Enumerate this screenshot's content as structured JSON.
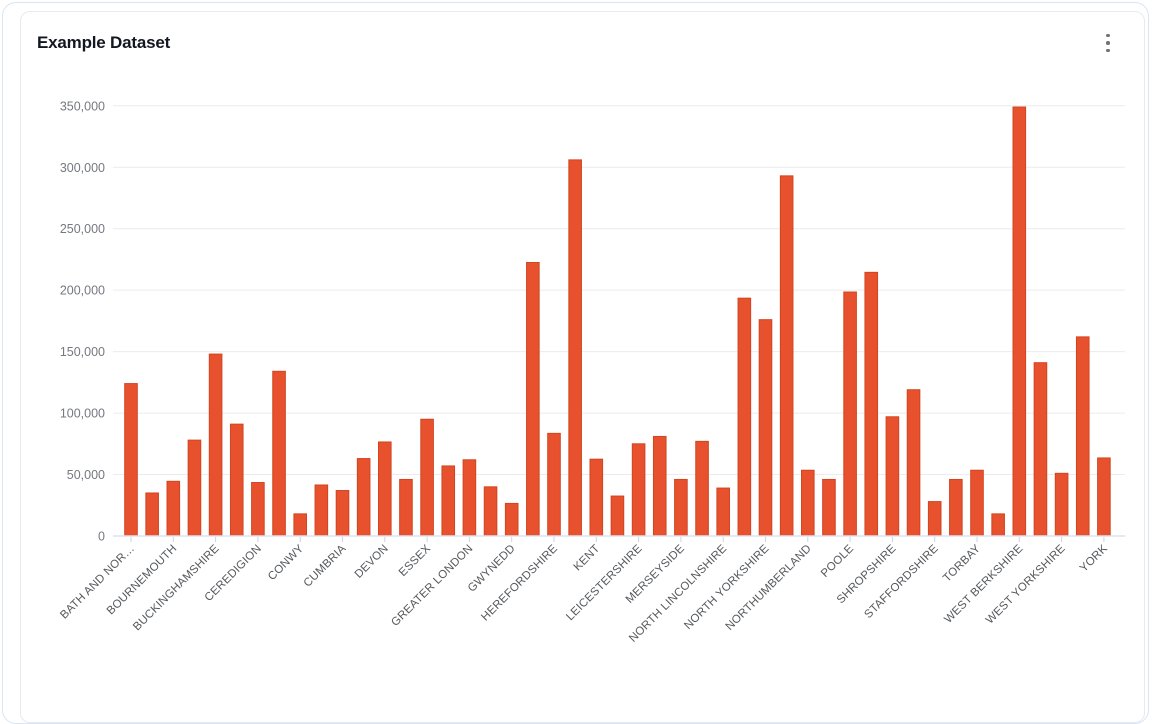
{
  "card": {
    "title": "Example Dataset",
    "menu_icon": "kebab-vertical-icon"
  },
  "chart_data": {
    "type": "bar",
    "title": "Example Dataset",
    "xlabel": "",
    "ylabel": "",
    "ylim": [
      0,
      350000
    ],
    "y_tick_step": 50000,
    "y_tick_labels": [
      "0",
      "50,000",
      "100,000",
      "150,000",
      "200,000",
      "250,000",
      "300,000",
      "350,000"
    ],
    "grid": true,
    "legend": "none",
    "x_label_rotation_deg": -45,
    "x_label_interval": 2,
    "bar_color": "#e8512e",
    "bar_border_color": "#d1451f",
    "axis_line_color": "#dce2ef",
    "gridline_color": "#ececee",
    "y_label_color": "#75787f",
    "x_label_color": "#55585c",
    "points": [
      {
        "label": "BATH AND NOR…",
        "value": 124000
      },
      {
        "label": "",
        "value": 35000
      },
      {
        "label": "BOURNEMOUTH",
        "value": 44500
      },
      {
        "label": "",
        "value": 78000
      },
      {
        "label": "BUCKINGHAMSHIRE",
        "value": 148000
      },
      {
        "label": "",
        "value": 91000
      },
      {
        "label": "CEREDIGION",
        "value": 43500
      },
      {
        "label": "",
        "value": 134000
      },
      {
        "label": "CONWY",
        "value": 18000
      },
      {
        "label": "",
        "value": 41500
      },
      {
        "label": "CUMBRIA",
        "value": 37000
      },
      {
        "label": "",
        "value": 63000
      },
      {
        "label": "DEVON",
        "value": 76500
      },
      {
        "label": "",
        "value": 46000
      },
      {
        "label": "ESSEX",
        "value": 95000
      },
      {
        "label": "",
        "value": 57000
      },
      {
        "label": "GREATER LONDON",
        "value": 62000
      },
      {
        "label": "",
        "value": 40000
      },
      {
        "label": "GWYNEDD",
        "value": 26500
      },
      {
        "label": "",
        "value": 222500
      },
      {
        "label": "HEREFORDSHIRE",
        "value": 83500
      },
      {
        "label": "",
        "value": 306000
      },
      {
        "label": "KENT",
        "value": 62500
      },
      {
        "label": "",
        "value": 32500
      },
      {
        "label": "LEICESTERSHIRE",
        "value": 75000
      },
      {
        "label": "",
        "value": 81000
      },
      {
        "label": "MERSEYSIDE",
        "value": 46000
      },
      {
        "label": "",
        "value": 77000
      },
      {
        "label": "NORTH LINCOLNSHIRE",
        "value": 39000
      },
      {
        "label": "",
        "value": 193500
      },
      {
        "label": "NORTH YORKSHIRE",
        "value": 176000
      },
      {
        "label": "",
        "value": 293000
      },
      {
        "label": "NORTHUMBERLAND",
        "value": 53500
      },
      {
        "label": "",
        "value": 46000
      },
      {
        "label": "POOLE",
        "value": 198500
      },
      {
        "label": "",
        "value": 214500
      },
      {
        "label": "SHROPSHIRE",
        "value": 97000
      },
      {
        "label": "",
        "value": 119000
      },
      {
        "label": "STAFFORDSHIRE",
        "value": 28000
      },
      {
        "label": "",
        "value": 46000
      },
      {
        "label": "TORBAY",
        "value": 53500
      },
      {
        "label": "",
        "value": 18000
      },
      {
        "label": "WEST BERKSHIRE",
        "value": 349000
      },
      {
        "label": "",
        "value": 141000
      },
      {
        "label": "WEST YORKSHIRE",
        "value": 51000
      },
      {
        "label": "",
        "value": 162000
      },
      {
        "label": "YORK",
        "value": 63500
      }
    ]
  }
}
